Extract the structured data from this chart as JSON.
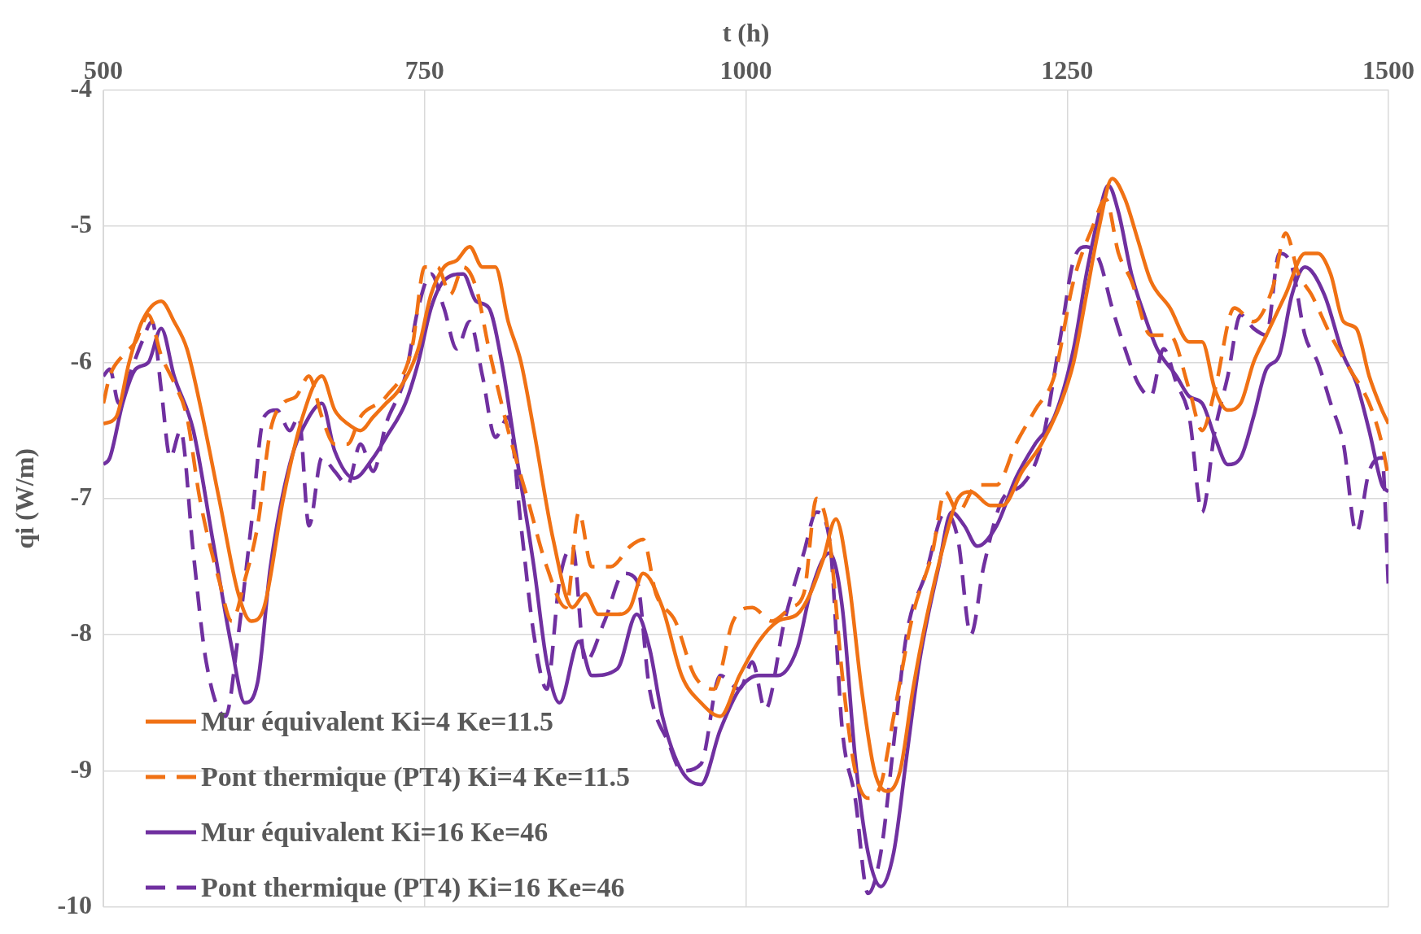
{
  "chart_data": {
    "type": "line",
    "xlabel": "t (h)",
    "ylabel": "qi (W/m)",
    "xlim": [
      500,
      1500
    ],
    "xticks": [
      500,
      750,
      1000,
      1250,
      1500
    ],
    "ylim": [
      -10,
      -4
    ],
    "yticks": [
      -10,
      -9,
      -8,
      -7,
      -6,
      -5,
      -4
    ],
    "grid": true,
    "legend": "bottom left",
    "marker": "none",
    "series": [
      {
        "name": "Mur équivalent Ki=4 Ke=11.5",
        "color": "#f07114",
        "line_style": "solid",
        "x": [
          500,
          510,
          520,
          530,
          545,
          555,
          565,
          575,
          590,
          605,
          615,
          625,
          640,
          655,
          670,
          680,
          690,
          700,
          710,
          720,
          730,
          745,
          755,
          765,
          775,
          785,
          795,
          805,
          815,
          825,
          835,
          850,
          865,
          875,
          885,
          900,
          910,
          920,
          935,
          950,
          965,
          980,
          995,
          1010,
          1025,
          1040,
          1050,
          1060,
          1070,
          1080,
          1090,
          1100,
          1110,
          1120,
          1130,
          1140,
          1155,
          1165,
          1175,
          1190,
          1200,
          1215,
          1230,
          1245,
          1255,
          1265,
          1275,
          1285,
          1295,
          1305,
          1315,
          1330,
          1345,
          1355,
          1365,
          1375,
          1385,
          1395,
          1405,
          1420,
          1435,
          1445,
          1455,
          1465,
          1475,
          1485,
          1495,
          1500
        ],
        "values": [
          -6.45,
          -6.4,
          -6.0,
          -5.7,
          -5.55,
          -5.7,
          -5.9,
          -6.3,
          -7.0,
          -7.7,
          -7.9,
          -7.8,
          -7.0,
          -6.4,
          -6.1,
          -6.35,
          -6.45,
          -6.5,
          -6.4,
          -6.3,
          -6.2,
          -5.9,
          -5.5,
          -5.3,
          -5.25,
          -5.15,
          -5.3,
          -5.3,
          -5.7,
          -6.0,
          -6.5,
          -7.3,
          -7.8,
          -7.7,
          -7.85,
          -7.85,
          -7.8,
          -7.55,
          -7.8,
          -8.3,
          -8.5,
          -8.6,
          -8.3,
          -8.05,
          -7.9,
          -7.85,
          -7.7,
          -7.45,
          -7.15,
          -7.6,
          -8.4,
          -9.0,
          -9.15,
          -9.0,
          -8.4,
          -7.9,
          -7.3,
          -7.0,
          -6.95,
          -7.05,
          -7.05,
          -6.8,
          -6.6,
          -6.3,
          -6.0,
          -5.5,
          -5.0,
          -4.65,
          -4.8,
          -5.1,
          -5.4,
          -5.6,
          -5.85,
          -5.85,
          -6.2,
          -6.35,
          -6.3,
          -6.0,
          -5.8,
          -5.5,
          -5.2,
          -5.2,
          -5.35,
          -5.7,
          -5.75,
          -6.1,
          -6.35,
          -6.45
        ]
      },
      {
        "name": "Pont thermique (PT4) Ki=4 Ke=11.5",
        "color": "#f07114",
        "line_style": "dashed",
        "x": [
          500,
          505,
          515,
          525,
          535,
          545,
          555,
          565,
          575,
          590,
          600,
          610,
          620,
          630,
          640,
          650,
          660,
          670,
          680,
          690,
          700,
          720,
          740,
          750,
          760,
          770,
          780,
          790,
          800,
          815,
          830,
          845,
          860,
          870,
          880,
          895,
          910,
          920,
          930,
          945,
          960,
          975,
          990,
          1005,
          1020,
          1035,
          1045,
          1055,
          1065,
          1075,
          1085,
          1095,
          1105,
          1115,
          1130,
          1145,
          1155,
          1165,
          1180,
          1195,
          1210,
          1225,
          1240,
          1255,
          1270,
          1280,
          1290,
          1300,
          1315,
          1330,
          1345,
          1355,
          1365,
          1380,
          1395,
          1410,
          1420,
          1430,
          1440,
          1455,
          1470,
          1485,
          1495,
          1500
        ],
        "values": [
          -6.3,
          -6.1,
          -5.95,
          -5.85,
          -5.65,
          -5.95,
          -6.15,
          -6.4,
          -7.0,
          -7.6,
          -7.9,
          -7.6,
          -7.2,
          -6.5,
          -6.3,
          -6.25,
          -6.1,
          -6.4,
          -6.6,
          -6.6,
          -6.4,
          -6.25,
          -5.9,
          -5.3,
          -5.3,
          -5.5,
          -5.3,
          -5.45,
          -5.9,
          -6.5,
          -7.0,
          -7.5,
          -7.8,
          -7.1,
          -7.5,
          -7.5,
          -7.35,
          -7.3,
          -7.7,
          -7.9,
          -8.3,
          -8.4,
          -7.9,
          -7.8,
          -7.9,
          -7.8,
          -7.7,
          -7.0,
          -7.3,
          -8.3,
          -9.0,
          -9.2,
          -9.1,
          -8.6,
          -7.85,
          -7.4,
          -6.95,
          -7.1,
          -6.9,
          -6.9,
          -6.6,
          -6.35,
          -6.1,
          -5.4,
          -5.0,
          -4.8,
          -5.2,
          -5.4,
          -5.8,
          -5.8,
          -6.2,
          -6.5,
          -6.2,
          -5.6,
          -5.7,
          -5.45,
          -5.05,
          -5.35,
          -5.5,
          -5.8,
          -6.05,
          -6.3,
          -6.6,
          -6.85
        ]
      },
      {
        "name": "Mur équivalent Ki=16 Ke=46",
        "color": "#7030a0",
        "line_style": "solid",
        "x": [
          500,
          505,
          515,
          525,
          535,
          545,
          555,
          570,
          585,
          600,
          610,
          620,
          630,
          645,
          660,
          670,
          680,
          695,
          710,
          720,
          735,
          745,
          755,
          765,
          780,
          790,
          800,
          810,
          820,
          835,
          845,
          855,
          870,
          880,
          900,
          915,
          925,
          935,
          950,
          965,
          980,
          995,
          1010,
          1025,
          1040,
          1050,
          1065,
          1075,
          1085,
          1095,
          1105,
          1115,
          1125,
          1135,
          1150,
          1160,
          1170,
          1180,
          1195,
          1210,
          1225,
          1240,
          1255,
          1265,
          1275,
          1282,
          1290,
          1300,
          1310,
          1320,
          1335,
          1345,
          1355,
          1365,
          1375,
          1385,
          1395,
          1405,
          1415,
          1425,
          1435,
          1450,
          1465,
          1475,
          1485,
          1495,
          1500
        ],
        "values": [
          -6.75,
          -6.7,
          -6.3,
          -6.05,
          -6.0,
          -5.75,
          -6.1,
          -6.5,
          -7.3,
          -8.1,
          -8.5,
          -8.35,
          -7.5,
          -6.75,
          -6.4,
          -6.3,
          -6.65,
          -6.85,
          -6.7,
          -6.55,
          -6.3,
          -6.0,
          -5.6,
          -5.4,
          -5.35,
          -5.55,
          -5.6,
          -6.0,
          -6.6,
          -7.5,
          -8.2,
          -8.5,
          -8.05,
          -8.3,
          -8.25,
          -7.85,
          -8.1,
          -8.6,
          -9.0,
          -9.1,
          -8.7,
          -8.4,
          -8.3,
          -8.3,
          -8.1,
          -7.7,
          -7.4,
          -7.8,
          -8.9,
          -9.6,
          -9.85,
          -9.6,
          -8.9,
          -8.2,
          -7.5,
          -7.1,
          -7.2,
          -7.35,
          -7.2,
          -6.85,
          -6.6,
          -6.4,
          -5.9,
          -5.35,
          -4.9,
          -4.7,
          -4.9,
          -5.35,
          -5.65,
          -5.9,
          -6.1,
          -6.25,
          -6.3,
          -6.55,
          -6.75,
          -6.7,
          -6.4,
          -6.05,
          -5.95,
          -5.5,
          -5.3,
          -5.5,
          -5.95,
          -6.15,
          -6.5,
          -6.9,
          -6.95
        ]
      },
      {
        "name": "Pont thermique (PT4) Ki=16 Ke=46",
        "color": "#7030a0",
        "line_style": "dashed",
        "x": [
          500,
          505,
          512,
          520,
          530,
          538,
          545,
          552,
          560,
          570,
          580,
          595,
          605,
          615,
          625,
          635,
          645,
          652,
          660,
          670,
          680,
          690,
          700,
          710,
          720,
          735,
          745,
          755,
          765,
          775,
          785,
          795,
          805,
          815,
          825,
          835,
          845,
          855,
          865,
          875,
          890,
          905,
          915,
          925,
          940,
          950,
          965,
          980,
          995,
          1005,
          1015,
          1030,
          1045,
          1055,
          1065,
          1075,
          1085,
          1095,
          1105,
          1115,
          1125,
          1140,
          1155,
          1165,
          1175,
          1185,
          1200,
          1215,
          1230,
          1245,
          1255,
          1265,
          1275,
          1285,
          1295,
          1305,
          1315,
          1325,
          1335,
          1345,
          1355,
          1365,
          1375,
          1385,
          1395,
          1405,
          1415,
          1425,
          1435,
          1445,
          1455,
          1465,
          1475,
          1485,
          1495,
          1500
        ],
        "values": [
          -6.1,
          -6.05,
          -6.3,
          -6.1,
          -5.85,
          -5.7,
          -6.2,
          -6.7,
          -6.5,
          -7.4,
          -8.2,
          -8.6,
          -8.0,
          -7.2,
          -6.4,
          -6.35,
          -6.5,
          -6.4,
          -7.2,
          -6.7,
          -6.8,
          -6.9,
          -6.6,
          -6.8,
          -6.45,
          -6.1,
          -5.6,
          -5.35,
          -5.6,
          -5.9,
          -5.7,
          -6.1,
          -6.55,
          -6.4,
          -7.2,
          -8.0,
          -8.4,
          -7.6,
          -7.35,
          -8.2,
          -7.9,
          -7.55,
          -7.6,
          -8.4,
          -8.8,
          -9.0,
          -8.95,
          -8.3,
          -8.4,
          -8.2,
          -8.55,
          -7.9,
          -7.4,
          -7.1,
          -7.3,
          -8.7,
          -9.2,
          -9.9,
          -9.6,
          -8.8,
          -8.0,
          -7.55,
          -7.1,
          -7.3,
          -8.0,
          -7.5,
          -7.0,
          -6.9,
          -6.6,
          -5.8,
          -5.25,
          -5.15,
          -5.25,
          -5.6,
          -5.9,
          -6.15,
          -6.25,
          -5.9,
          -6.15,
          -6.4,
          -7.1,
          -6.5,
          -6.1,
          -5.65,
          -5.75,
          -5.8,
          -5.2,
          -5.3,
          -5.8,
          -6.0,
          -6.3,
          -6.6,
          -7.25,
          -6.8,
          -6.7,
          -7.65
        ]
      }
    ]
  }
}
